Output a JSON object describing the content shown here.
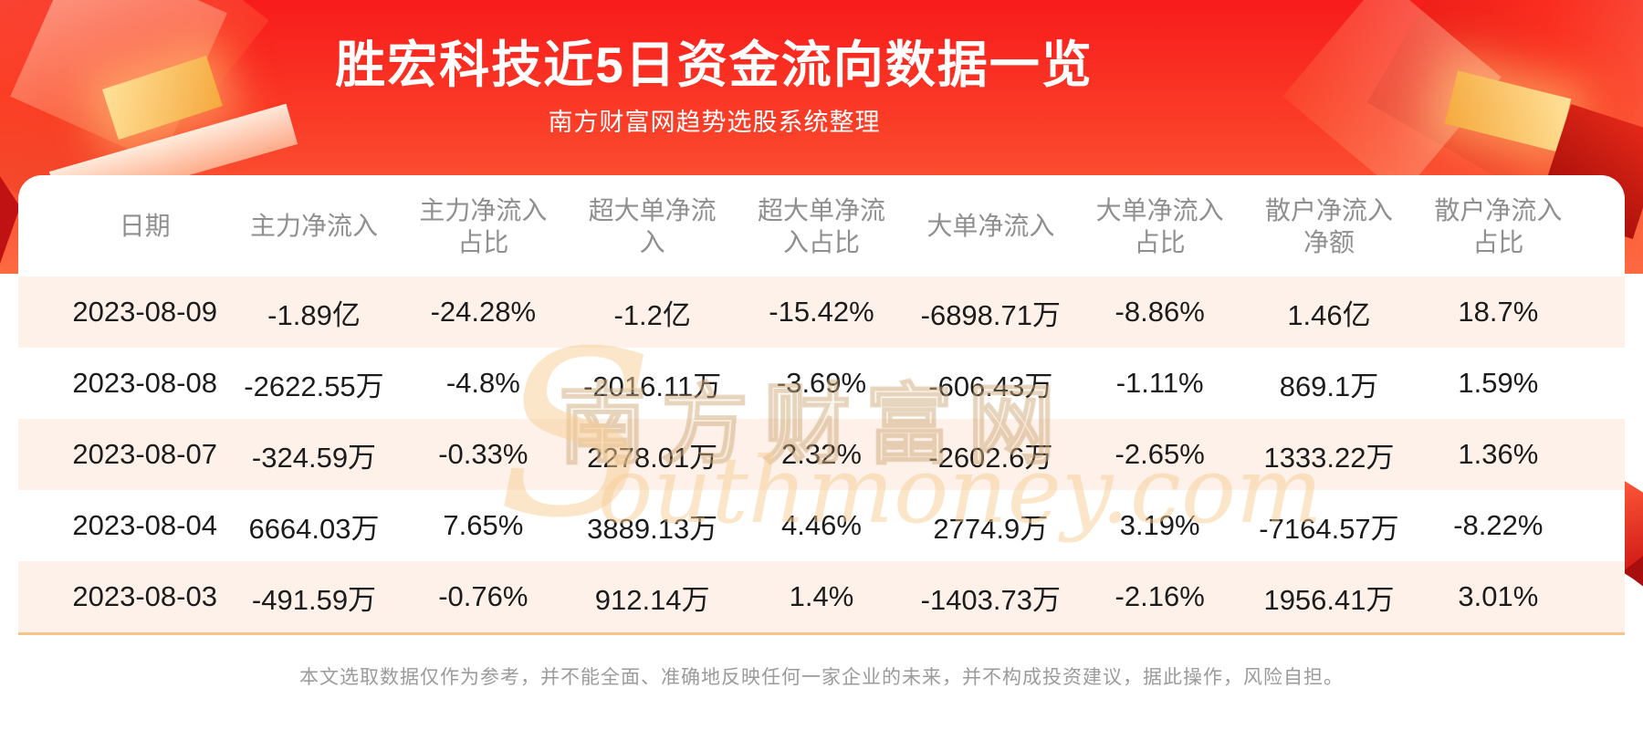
{
  "page": {
    "title": "胜宏科技近5日资金流向数据一览",
    "subtitle": "南方财富网趋势选股系统整理",
    "disclaimer": "本文选取数据仅作为参考，并不能全面、准确地反映任何一家企业的未来，并不构成投资建议，据此操作，风险自担。"
  },
  "watermark": {
    "cn": "南方财富网",
    "en_initial": "S",
    "en_rest": "outhmoney.com"
  },
  "colors": {
    "banner_top": "#f81b1b",
    "banner_bottom": "#fc6a42",
    "row_alt": "#fdf1e9",
    "divider": "#f5c48a",
    "header_text": "#8f8f8f",
    "title_text": "#ffffff",
    "gold_accent": "#f5a93d"
  },
  "header_display": [
    "日期",
    "主力净流入",
    "主力净流入\n占比",
    "超大单净流\n入",
    "超大单净流\n入占比",
    "大单净流入",
    "大单净流入\n占比",
    "散户净流入\n净额",
    "散户净流入\n占比"
  ],
  "chart_data": {
    "type": "table",
    "title": "胜宏科技近5日资金流向数据一览",
    "subtitle": "南方财富网趋势选股系统整理",
    "columns": [
      "日期",
      "主力净流入",
      "主力净流入占比",
      "超大单净流入",
      "超大单净流入占比",
      "大单净流入",
      "大单净流入占比",
      "散户净流入净额",
      "散户净流入占比"
    ],
    "rows": [
      [
        "2023-08-09",
        "-1.89亿",
        "-24.28%",
        "-1.2亿",
        "-15.42%",
        "-6898.71万",
        "-8.86%",
        "1.46亿",
        "18.7%"
      ],
      [
        "2023-08-08",
        "-2622.55万",
        "-4.8%",
        "-2016.11万",
        "-3.69%",
        "-606.43万",
        "-1.11%",
        "869.1万",
        "1.59%"
      ],
      [
        "2023-08-07",
        "-324.59万",
        "-0.33%",
        "2278.01万",
        "2.32%",
        "-2602.6万",
        "-2.65%",
        "1333.22万",
        "1.36%"
      ],
      [
        "2023-08-04",
        "6664.03万",
        "7.65%",
        "3889.13万",
        "4.46%",
        "2774.9万",
        "3.19%",
        "-7164.57万",
        "-8.22%"
      ],
      [
        "2023-08-03",
        "-491.59万",
        "-0.76%",
        "912.14万",
        "1.4%",
        "-1403.73万",
        "-2.16%",
        "1956.41万",
        "3.01%"
      ]
    ]
  }
}
